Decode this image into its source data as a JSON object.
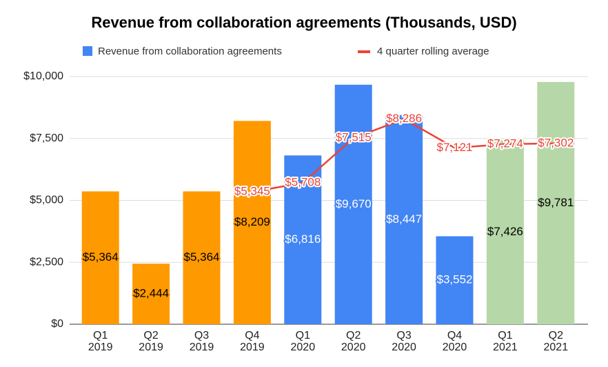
{
  "chart_data": {
    "type": "bar",
    "title": "Revenue from collaboration agreements (Thousands, USD)",
    "categories": [
      "Q1 2019",
      "Q2 2019",
      "Q3 2019",
      "Q4 2019",
      "Q1 2020",
      "Q2 2020",
      "Q3 2020",
      "Q4 2020",
      "Q1 2021",
      "Q2 2021"
    ],
    "series": [
      {
        "name": "Revenue from collaboration agreements",
        "color": "#4285f4",
        "colors": [
          "#ff9900",
          "#ff9900",
          "#ff9900",
          "#ff9900",
          "#4285f4",
          "#4285f4",
          "#4285f4",
          "#4285f4",
          "#b6d7a8",
          "#b6d7a8"
        ],
        "label_colors": [
          "#000000",
          "#000000",
          "#000000",
          "#000000",
          "#ffffff",
          "#ffffff",
          "#ffffff",
          "#ffffff",
          "#000000",
          "#000000"
        ],
        "values": [
          5364,
          2444,
          5364,
          8209,
          6816,
          9670,
          8447,
          3552,
          7426,
          9781
        ],
        "value_labels": [
          "$5,364",
          "$2,444",
          "$5,364",
          "$8,209",
          "$6,816",
          "$9,670",
          "$8,447",
          "$3,552",
          "$7,426",
          "$9,781"
        ]
      },
      {
        "name": "4 quarter rolling average",
        "color": "#ea4335",
        "type": "line",
        "values": [
          null,
          null,
          null,
          5345,
          5708,
          7515,
          8286,
          7121,
          7274,
          7302
        ],
        "value_labels": [
          null,
          null,
          null,
          "$5,345",
          "$5,708",
          "$7,515",
          "$8,286",
          "$7,121",
          "$7,274",
          "$7,302"
        ]
      }
    ],
    "ylim": [
      0,
      10000
    ],
    "yticks": [
      {
        "value": 0,
        "label": "$0"
      },
      {
        "value": 2500,
        "label": "$2,500"
      },
      {
        "value": 5000,
        "label": "$5,000"
      },
      {
        "value": 7500,
        "label": "$7,500"
      },
      {
        "value": 10000,
        "label": "$10,000"
      }
    ],
    "grid": true
  }
}
